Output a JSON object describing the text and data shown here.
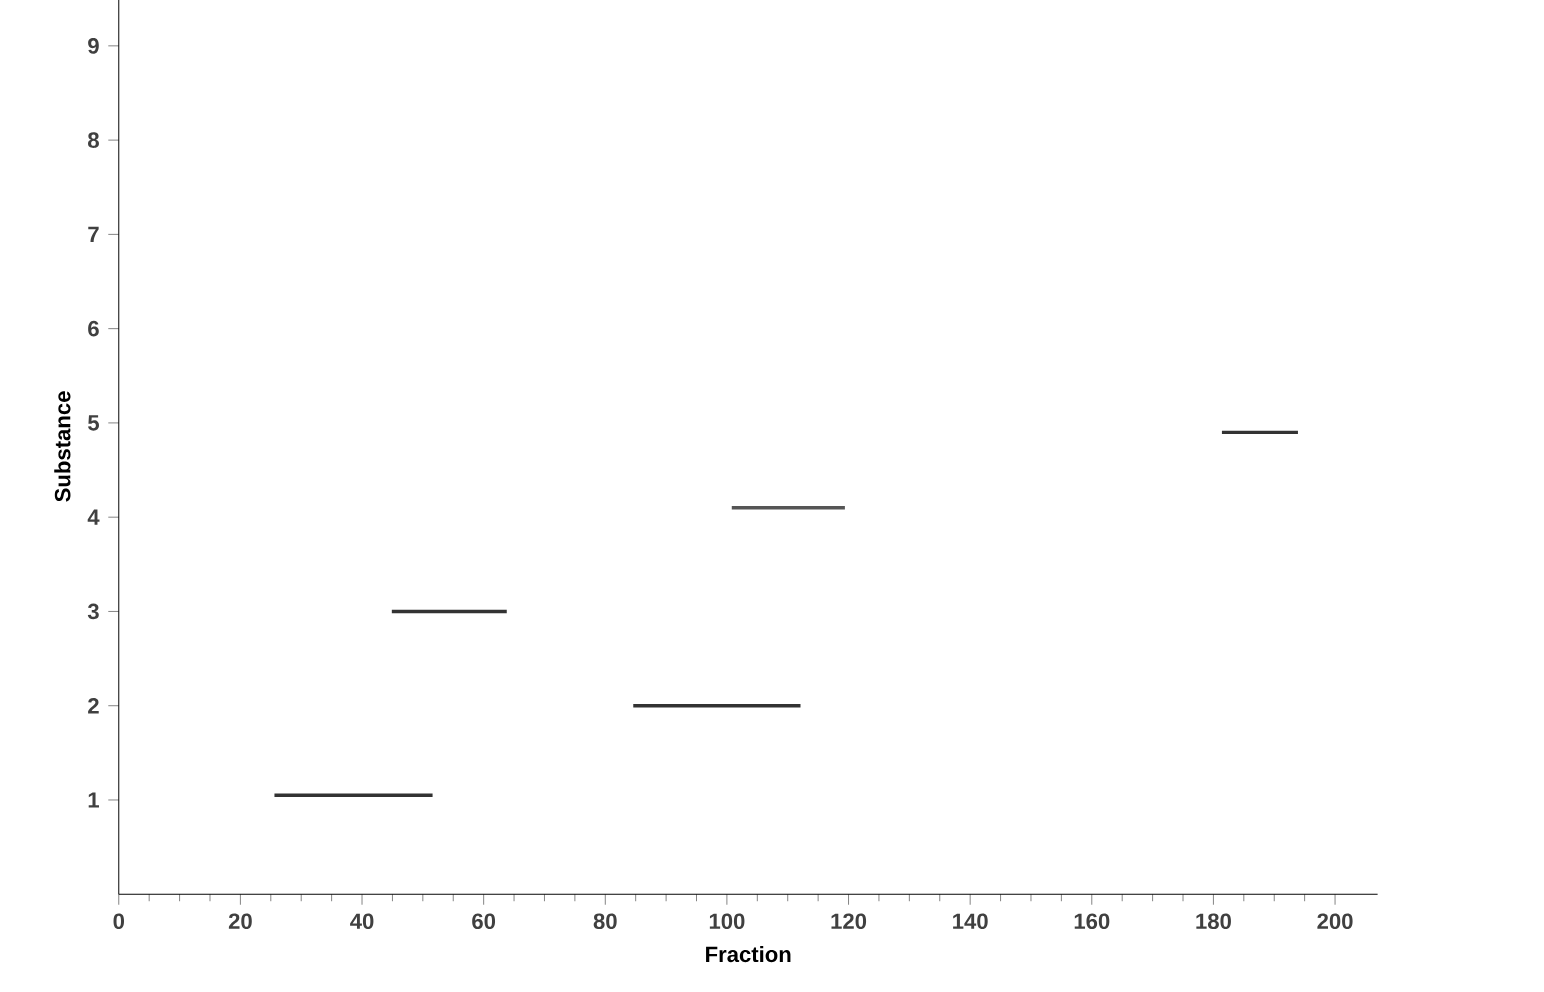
{
  "chart_data": {
    "type": "line",
    "xlabel": "Fraction",
    "ylabel": "Substance",
    "xlim": [
      0,
      207
    ],
    "ylim": [
      0,
      9.5
    ],
    "xticks": [
      0,
      20,
      40,
      60,
      80,
      100,
      120,
      140,
      160,
      180,
      200
    ],
    "yticks": [
      1,
      2,
      3,
      4,
      5,
      6,
      7,
      8,
      9
    ],
    "grid": false,
    "marker": "none",
    "line_style": "solid",
    "series": [
      {
        "color": "#333333",
        "x": [
          25.6,
          51.6
        ],
        "values": [
          1.05,
          1.05
        ]
      },
      {
        "color": "#333333",
        "x": [
          44.9,
          63.8
        ],
        "values": [
          3.0,
          3.0
        ]
      },
      {
        "color": "#333333",
        "x": [
          84.6,
          112.1
        ],
        "values": [
          2.0,
          2.0
        ]
      },
      {
        "color": "#555555",
        "x": [
          100.8,
          119.4
        ],
        "values": [
          4.1,
          4.1
        ]
      },
      {
        "color": "#333333",
        "x": [
          181.4,
          193.9
        ],
        "values": [
          4.9,
          4.9
        ]
      }
    ]
  }
}
